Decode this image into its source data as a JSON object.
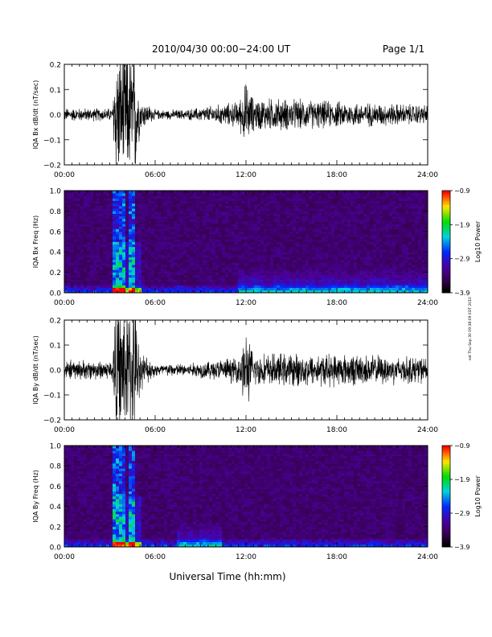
{
  "header": {
    "title": "2010/04/30  00:00−24:00 UT",
    "page": "Page 1/1"
  },
  "footer": {
    "xlabel": "Universal Time (hh:mm)",
    "stamp": "est Thu Sep 30 09:38:09 EDT 2010"
  },
  "chart_data": [
    {
      "type": "line",
      "title": "",
      "ylabel": "IQA Bx dB/dt (nT/sec)",
      "xlabel": "",
      "xlim": [
        "00:00",
        "24:00"
      ],
      "ylim": [
        -0.2,
        0.2
      ],
      "x_ticks": [
        "00:00",
        "06:00",
        "12:00",
        "18:00",
        "24:00"
      ],
      "y_ticks": [
        "−0.2",
        "−0.1",
        "0.0",
        "0.1",
        "0.2"
      ],
      "series": [
        {
          "x_hours": [
            0,
            3.2,
            3.3,
            4.7,
            5.0,
            6.0,
            8.0,
            11.5,
            12.0,
            12.5,
            14.0,
            18.0,
            24.0
          ],
          "amplitude": [
            0.02,
            0.02,
            0.2,
            0.2,
            0.05,
            0.015,
            0.015,
            0.04,
            0.1,
            0.05,
            0.05,
            0.04,
            0.03
          ]
        }
      ]
    },
    {
      "type": "heatmap",
      "title": "",
      "ylabel": "IQA Bx Freq (Hz)",
      "xlabel": "",
      "xlim": [
        "00:00",
        "24:00"
      ],
      "ylim": [
        0.0,
        1.0
      ],
      "x_ticks": [
        "00:00",
        "06:00",
        "12:00",
        "18:00",
        "24:00"
      ],
      "y_ticks": [
        "0.0",
        "0.2",
        "0.4",
        "0.6",
        "0.8",
        "1.0"
      ],
      "colorbar": {
        "label": "Log10 Power",
        "ticks": [
          "−0.9",
          "−1.9",
          "−2.9",
          "−3.9"
        ],
        "range": [
          -3.9,
          -0.9
        ]
      },
      "features": {
        "bursts_hours": [
          3.4,
          3.6,
          4.0,
          4.3,
          4.6
        ],
        "low_freq_enhancement_hours": [
          11.5,
          24.0
        ]
      }
    },
    {
      "type": "line",
      "title": "",
      "ylabel": "IQA By dB/dt (nT/sec)",
      "xlabel": "",
      "xlim": [
        "00:00",
        "24:00"
      ],
      "ylim": [
        -0.2,
        0.2
      ],
      "x_ticks": [
        "00:00",
        "06:00",
        "12:00",
        "18:00",
        "24:00"
      ],
      "y_ticks": [
        "−0.2",
        "−0.1",
        "0.0",
        "0.1",
        "0.2"
      ],
      "series": [
        {
          "x_hours": [
            0,
            3.2,
            3.3,
            4.7,
            5.0,
            6.0,
            8.0,
            11.5,
            12.0,
            12.5,
            14.0,
            18.0,
            24.0
          ],
          "amplitude": [
            0.03,
            0.03,
            0.2,
            0.2,
            0.06,
            0.02,
            0.02,
            0.04,
            0.12,
            0.05,
            0.05,
            0.05,
            0.04
          ]
        }
      ]
    },
    {
      "type": "heatmap",
      "title": "",
      "ylabel": "IQA By Freq (Hz)",
      "xlabel": "",
      "xlim": [
        "00:00",
        "24:00"
      ],
      "ylim": [
        0.0,
        1.0
      ],
      "x_ticks": [
        "00:00",
        "06:00",
        "12:00",
        "18:00",
        "24:00"
      ],
      "y_ticks": [
        "0.0",
        "0.2",
        "0.4",
        "0.6",
        "0.8",
        "1.0"
      ],
      "colorbar": {
        "label": "Log10 Power",
        "ticks": [
          "−0.9",
          "−1.9",
          "−2.9",
          "−3.9"
        ],
        "range": [
          -3.9,
          -0.9
        ]
      },
      "features": {
        "bursts_hours": [
          3.4,
          3.6,
          4.0,
          4.3,
          4.6
        ],
        "low_freq_enhancement_hours": [
          7.5,
          10.5
        ]
      }
    }
  ]
}
